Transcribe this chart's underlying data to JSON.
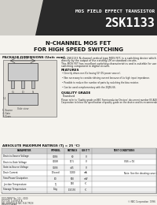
{
  "bg_color": "#d0cec8",
  "header_bg": "#1a1a1a",
  "title_line1": "MOS FIELD EFFECT TRANSISTOR",
  "title_line2": "2SK1133",
  "subtitle_line1": "N-CHANNEL MOS FET",
  "subtitle_line2": "FOR HIGH SPEED SWITCHING",
  "section_pkg": "PACKAGE DIMENSIONS (Unit: mm)",
  "section_abs": "ABSOLUTE MAXIMUM RATINGS (Tj = 25 °C)",
  "abs_headers": [
    "PARAMETER",
    "SYMBOL",
    "RATINGS",
    "UNIT T",
    "TEST CONDITIONS"
  ],
  "abs_rows": [
    [
      "Drain-to-Source Voltage",
      "VDSS",
      "60",
      "V",
      ""
    ],
    [
      "Drain-to-Gate Voltage",
      "VDGR",
      "17.5",
      "V",
      "VGS = 0V"
    ],
    [
      "Gate-to-Source Voltage",
      "VGSS",
      "±15",
      "V",
      ""
    ],
    [
      "Drain Current",
      "ID(cont)",
      "1.000",
      "mA",
      "Note: See the derating curve in Fig. 5"
    ],
    [
      "Total Power Dissipation",
      "PD",
      "500",
      "mW",
      ""
    ],
    [
      "Junction Temperature",
      "Tj",
      "150",
      "°C",
      ""
    ],
    [
      "Storage Temperature",
      "Tstg",
      "-55/150",
      "°C",
      ""
    ]
  ],
  "footer_left": [
    "DOCUMENT No. 151 - 0000",
    "EDITION: 1st ISSUE A",
    "NEC PRINTED IN NEC ELECTRON",
    "PRINTED JAPAN"
  ],
  "footer_right": "© NEC Corporation  1996",
  "body_text_col1": "The 2SK1133 N-channel vertical type MOS FET, is a switching device which can be driven directly by the output of the existing LM or standard circuits.",
  "body_text_col2": "This MOS FET has excellent switching characteristics and is suitable for use as a high-speed switching component in digital circuits.",
  "features_title": "FEATURES",
  "features": [
    "Directly drives non ICs having 5V (0V power source).",
    "Non necessary to consider driving current because of its high input impedance.",
    "Possible to reduce the number of parts by switching the bias resistor.",
    "Can be used complementary with the 2SJ56-66."
  ],
  "quality_title": "QUALITY GRADE",
  "quality_text": "Standard",
  "quality_note": "Please refer to 'Quality grade on NEC Semiconductor Devices' document number IEI-A0002 published by NEC Corporation to know the specification of quality grade on the device and its recommended applications.",
  "white_body_bg": "#f5f3ee",
  "body_bg": "#e8e6e0"
}
